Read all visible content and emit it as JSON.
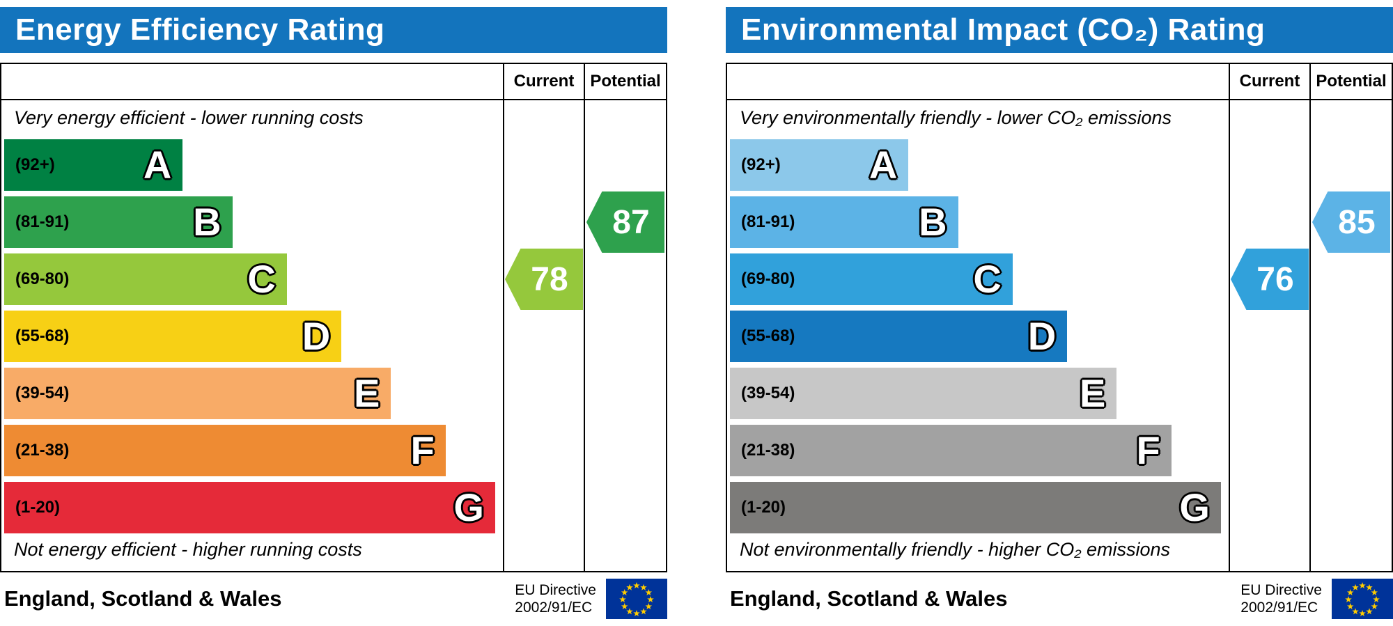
{
  "chart_data": [
    {
      "type": "bar",
      "title": "Energy Efficiency Rating",
      "header_color": "#1374bd",
      "columns": {
        "current": "Current",
        "potential": "Potential"
      },
      "top_note": "Very energy efficient - lower running costs",
      "bottom_note": "Not energy efficient - higher running costs",
      "bands": [
        {
          "label": "A",
          "range": "(92+)",
          "color": "#008143",
          "width_pct": 36
        },
        {
          "label": "B",
          "range": "(81-91)",
          "color": "#2ea14d",
          "width_pct": 46
        },
        {
          "label": "C",
          "range": "(69-80)",
          "color": "#95c83c",
          "width_pct": 57
        },
        {
          "label": "D",
          "range": "(55-68)",
          "color": "#f7d015",
          "width_pct": 68
        },
        {
          "label": "E",
          "range": "(39-54)",
          "color": "#f8ab67",
          "width_pct": 78
        },
        {
          "label": "F",
          "range": "(21-38)",
          "color": "#ee8b33",
          "width_pct": 89
        },
        {
          "label": "G",
          "range": "(1-20)",
          "color": "#e52a39",
          "width_pct": 99
        }
      ],
      "current": {
        "value": 78,
        "band": "C",
        "color": "#95c83c"
      },
      "potential": {
        "value": 87,
        "band": "B",
        "color": "#2ea14d"
      },
      "footer": {
        "region": "England, Scotland & Wales",
        "directive": [
          "EU Directive",
          "2002/91/EC"
        ]
      }
    },
    {
      "type": "bar",
      "title": "Environmental Impact (CO₂) Rating",
      "header_color": "#1374bd",
      "columns": {
        "current": "Current",
        "potential": "Potential"
      },
      "top_note": "Very environmentally friendly - lower CO₂ emissions",
      "bottom_note": "Not environmentally friendly - higher CO₂ emissions",
      "bands": [
        {
          "label": "A",
          "range": "(92+)",
          "color": "#8cc8ea",
          "width_pct": 36
        },
        {
          "label": "B",
          "range": "(81-91)",
          "color": "#5cb3e6",
          "width_pct": 46
        },
        {
          "label": "C",
          "range": "(69-80)",
          "color": "#31a1db",
          "width_pct": 57
        },
        {
          "label": "D",
          "range": "(55-68)",
          "color": "#1679c0",
          "width_pct": 68
        },
        {
          "label": "E",
          "range": "(39-54)",
          "color": "#c7c7c7",
          "width_pct": 78
        },
        {
          "label": "F",
          "range": "(21-38)",
          "color": "#a2a2a2",
          "width_pct": 89
        },
        {
          "label": "G",
          "range": "(1-20)",
          "color": "#7c7b79",
          "width_pct": 99
        }
      ],
      "current": {
        "value": 76,
        "band": "C",
        "color": "#31a1db"
      },
      "potential": {
        "value": 85,
        "band": "B",
        "color": "#5cb3e6"
      },
      "footer": {
        "region": "England, Scotland & Wales",
        "directive": [
          "EU Directive",
          "2002/91/EC"
        ]
      }
    }
  ]
}
